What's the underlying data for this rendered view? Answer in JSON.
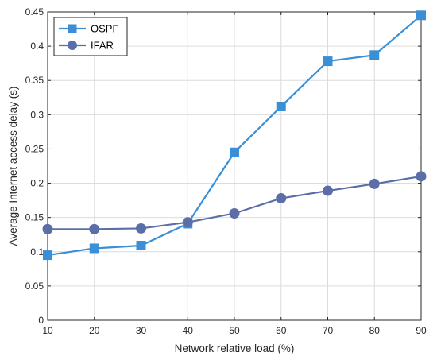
{
  "chart_data": {
    "type": "line",
    "title": "",
    "xlabel": "Network relative load (%)",
    "ylabel": "Average Internet access delay (s)",
    "x": [
      10,
      20,
      30,
      40,
      50,
      60,
      70,
      80,
      90
    ],
    "xlim": [
      10,
      90
    ],
    "ylim": [
      0,
      0.45
    ],
    "xticks": [
      "10",
      "20",
      "30",
      "40",
      "50",
      "60",
      "70",
      "80",
      "90"
    ],
    "yticks": [
      "0",
      "0.05",
      "0.1",
      "0.15",
      "0.2",
      "0.25",
      "0.3",
      "0.35",
      "0.4",
      "0.45"
    ],
    "grid": true,
    "legend_position": "top-left",
    "series": [
      {
        "name": "OSPF",
        "marker": "square",
        "color": "#3a8fd6",
        "values": [
          0.095,
          0.105,
          0.109,
          0.141,
          0.245,
          0.312,
          0.378,
          0.387,
          0.445
        ]
      },
      {
        "name": "IFAR",
        "marker": "circle",
        "color": "#5b6ea8",
        "values": [
          0.133,
          0.133,
          0.134,
          0.143,
          0.156,
          0.178,
          0.189,
          0.199,
          0.21
        ]
      }
    ]
  }
}
